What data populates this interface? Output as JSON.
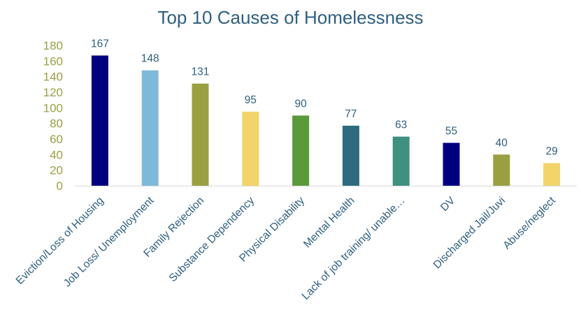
{
  "chart_data": {
    "type": "bar",
    "title": "Top 10 Causes of Homelessness",
    "categories": [
      "Eviction/Loss of Housing",
      "Job Loss/ Unemployment",
      "Family Rejection",
      "Substance Dependency",
      "Physical Disability",
      "Mental Health",
      "Lack of job training/ unable…",
      "DV",
      "Discharged Jail/Juvi",
      "Abuse/neglect"
    ],
    "values": [
      167,
      148,
      131,
      95,
      90,
      77,
      63,
      55,
      40,
      29
    ],
    "data_labels": [
      "167",
      "148",
      "131",
      "95",
      "90",
      "77",
      "63",
      "55",
      "40",
      "29"
    ],
    "colors": [
      "#00007F",
      "#7FB9D9",
      "#9AA041",
      "#F2D46B",
      "#5A9A3A",
      "#2E6B80",
      "#3F9080",
      "#00007F",
      "#9AA041",
      "#F2D46B"
    ],
    "yticks": [
      0,
      20,
      40,
      60,
      80,
      100,
      120,
      140,
      160,
      180
    ],
    "ylim": [
      0,
      180
    ],
    "grid": false,
    "legend": "none",
    "title_color": "#2E5F80",
    "ytick_color": "#9AA041",
    "xtick_color": "#2E5F80"
  }
}
